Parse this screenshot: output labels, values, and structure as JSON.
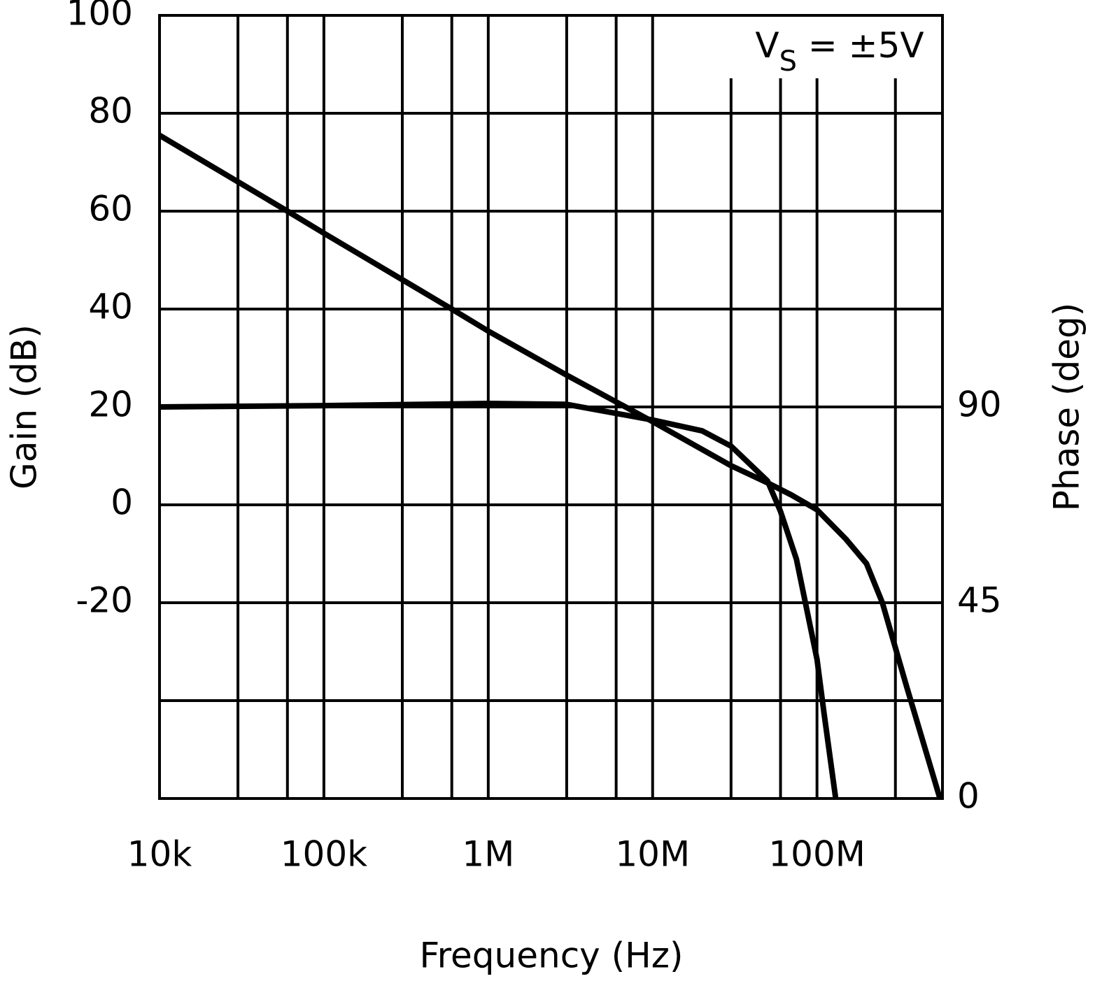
{
  "chart_data": {
    "type": "line",
    "xlabel": "Frequency (Hz)",
    "ylabel": "Gain (dB)",
    "y2label": "Phase (deg)",
    "annotation": [
      "V",
      "S",
      " = ±5V"
    ],
    "xscale": "log",
    "xlim": [
      10000,
      580000000
    ],
    "xticks": [
      {
        "value": 10000,
        "label": "10k"
      },
      {
        "value": 30000,
        "label": null
      },
      {
        "value": 60000,
        "label": null
      },
      {
        "value": 100000,
        "label": "100k"
      },
      {
        "value": 300000,
        "label": null
      },
      {
        "value": 600000,
        "label": null
      },
      {
        "value": 1000000,
        "label": "1M"
      },
      {
        "value": 3000000,
        "label": null
      },
      {
        "value": 6000000,
        "label": null
      },
      {
        "value": 10000000,
        "label": "10M"
      },
      {
        "value": 30000000,
        "label": null
      },
      {
        "value": 60000000,
        "label": null
      },
      {
        "value": 100000000,
        "label": "100M"
      },
      {
        "value": 300000000,
        "label": null
      }
    ],
    "ylim": [
      -60,
      100
    ],
    "yticks": [
      100,
      80,
      60,
      40,
      20,
      0,
      -20,
      {
        "value": -40,
        "label": null
      }
    ],
    "y2lim": [
      0,
      180
    ],
    "y2ticks": [
      0,
      45,
      90
    ],
    "grid": true,
    "series": [
      {
        "name": "Gain",
        "color": "#000000",
        "x": [
          10000,
          30000,
          60000,
          100000,
          300000,
          600000,
          1000000,
          3000000,
          10000000,
          30000000,
          50000000,
          70000000,
          100000000,
          150000000,
          200000000,
          250000000,
          350000000,
          560000000
        ],
        "values": [
          75.5,
          66,
          60,
          55.5,
          46,
          40,
          35.5,
          26.5,
          17,
          8,
          4.5,
          2,
          -1,
          -7,
          -12,
          -20,
          -37,
          -60
        ]
      },
      {
        "name": "Phase",
        "color": "#000000",
        "axis": "y2",
        "x": [
          10000,
          100000,
          1000000,
          3000000,
          10000000,
          20000000,
          30000000,
          50000000,
          60000000,
          75000000,
          100000000,
          110000000,
          130000000
        ],
        "values": [
          90,
          90.3,
          90.8,
          90.6,
          87,
          84.5,
          81,
          73,
          66,
          55,
          32,
          20,
          0
        ]
      }
    ]
  }
}
